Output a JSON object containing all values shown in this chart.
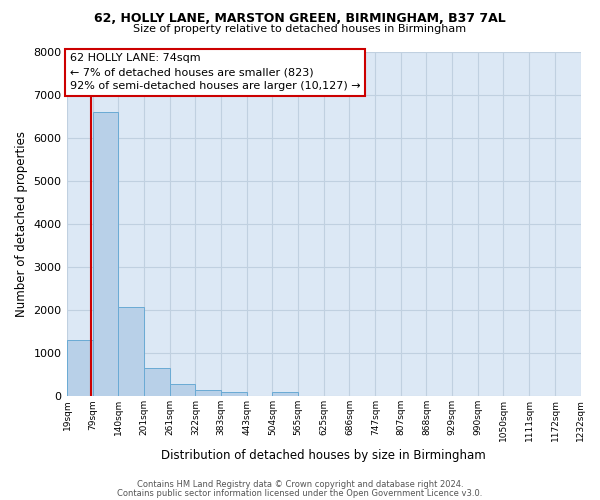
{
  "title_line1": "62, HOLLY LANE, MARSTON GREEN, BIRMINGHAM, B37 7AL",
  "title_line2": "Size of property relative to detached houses in Birmingham",
  "xlabel": "Distribution of detached houses by size in Birmingham",
  "ylabel": "Number of detached properties",
  "bar_edges": [
    19,
    79,
    140,
    201,
    261,
    322,
    383,
    443,
    504,
    565,
    625,
    686,
    747,
    807,
    868,
    929,
    990,
    1050,
    1111,
    1172,
    1232
  ],
  "bar_heights": [
    1300,
    6600,
    2080,
    650,
    290,
    150,
    90,
    0,
    95,
    0,
    0,
    0,
    0,
    0,
    0,
    0,
    0,
    0,
    0,
    0
  ],
  "bar_color": "#b8d0e8",
  "bar_edge_color": "#6aaad4",
  "property_line_x": 74,
  "property_line_color": "#cc0000",
  "annotation_line1": "62 HOLLY LANE: 74sqm",
  "annotation_line2": "← 7% of detached houses are smaller (823)",
  "annotation_line3": "92% of semi-detached houses are larger (10,127) →",
  "annotation_box_color": "#ffffff",
  "annotation_box_edge": "#cc0000",
  "ylim": [
    0,
    8000
  ],
  "yticks": [
    0,
    1000,
    2000,
    3000,
    4000,
    5000,
    6000,
    7000,
    8000
  ],
  "tick_labels": [
    "19sqm",
    "79sqm",
    "140sqm",
    "201sqm",
    "261sqm",
    "322sqm",
    "383sqm",
    "443sqm",
    "504sqm",
    "565sqm",
    "625sqm",
    "686sqm",
    "747sqm",
    "807sqm",
    "868sqm",
    "929sqm",
    "990sqm",
    "1050sqm",
    "1111sqm",
    "1172sqm",
    "1232sqm"
  ],
  "bg_color": "#ffffff",
  "plot_bg_color": "#dce8f5",
  "grid_color": "#c0d0e0",
  "footer_line1": "Contains HM Land Registry data © Crown copyright and database right 2024.",
  "footer_line2": "Contains public sector information licensed under the Open Government Licence v3.0."
}
